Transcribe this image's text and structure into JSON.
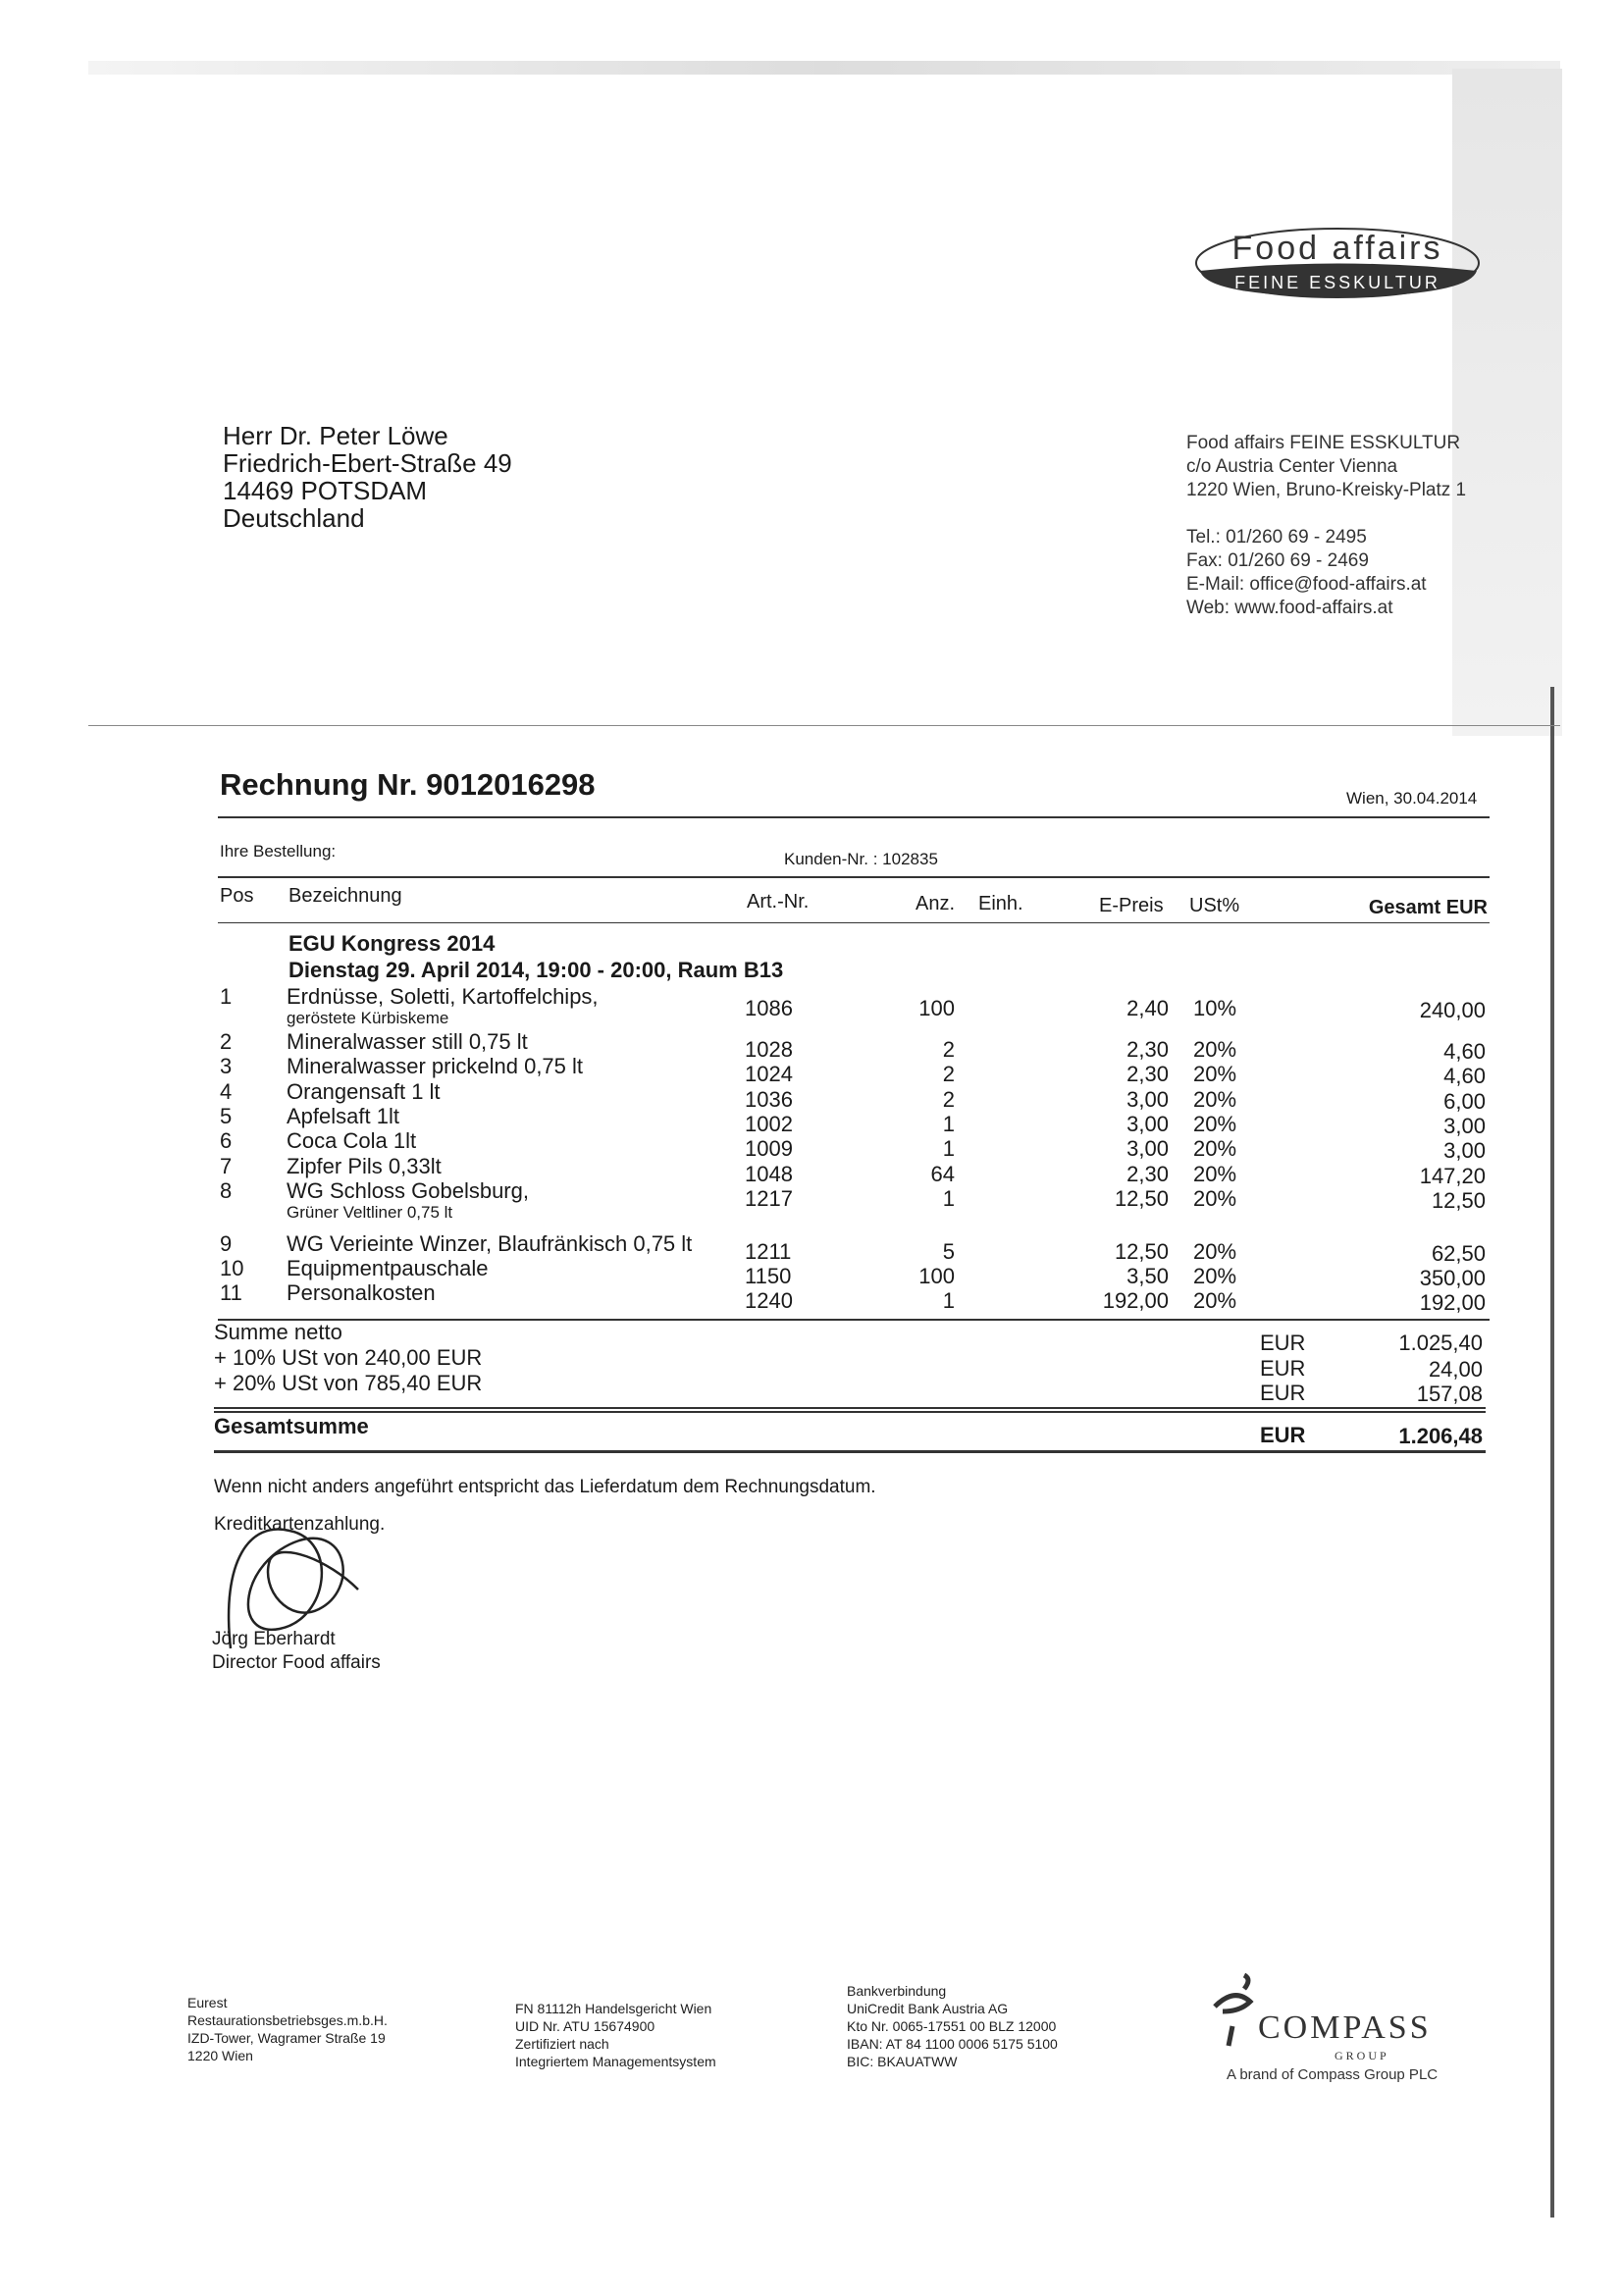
{
  "logo": {
    "name": "Food affairs",
    "tagline": "FEINE ESSKULTUR"
  },
  "recipient": [
    "Herr Dr. Peter Löwe",
    "Friedrich-Ebert-Straße 49",
    "14469 POTSDAM",
    "Deutschland"
  ],
  "sender": [
    "Food affairs FEINE ESSKULTUR",
    "c/o Austria Center Vienna",
    "1220 Wien, Bruno-Kreisky-Platz 1",
    "",
    "Tel.: 01/260 69 - 2495",
    "Fax: 01/260 69 - 2469",
    "E-Mail: office@food-affairs.at",
    "Web: www.food-affairs.at"
  ],
  "invoice": {
    "title": "Rechnung Nr. 9012016298",
    "date": "Wien, 30.04.2014",
    "order_label": "Ihre Bestellung:",
    "customer_no": "Kunden-Nr. : 102835"
  },
  "table": {
    "headers": {
      "pos": "Pos",
      "desc": "Bezeichnung",
      "art": "Art.-Nr.",
      "qty": "Anz.",
      "unit": "Einh.",
      "price": "E-Preis",
      "vat": "USt%",
      "total": "Gesamt EUR"
    },
    "event_title": "EGU Kongress 2014",
    "event_detail": "Dienstag 29. April 2014, 19:00 - 20:00, Raum B13",
    "rows": [
      {
        "pos": "1",
        "desc": "Erdnüsse, Soletti, Kartoffelchips,",
        "sub": "geröstete Kürbiskeme",
        "art": "1086",
        "qty": "100",
        "price": "2,40",
        "vat": "10%",
        "total": "240,00"
      },
      {
        "pos": "2",
        "desc": "Mineralwasser still 0,75 lt",
        "art": "1028",
        "qty": "2",
        "price": "2,30",
        "vat": "20%",
        "total": "4,60"
      },
      {
        "pos": "3",
        "desc": "Mineralwasser prickelnd 0,75 lt",
        "art": "1024",
        "qty": "2",
        "price": "2,30",
        "vat": "20%",
        "total": "4,60"
      },
      {
        "pos": "4",
        "desc": "Orangensaft 1 lt",
        "art": "1036",
        "qty": "2",
        "price": "3,00",
        "vat": "20%",
        "total": "6,00"
      },
      {
        "pos": "5",
        "desc": "Apfelsaft 1lt",
        "art": "1002",
        "qty": "1",
        "price": "3,00",
        "vat": "20%",
        "total": "3,00"
      },
      {
        "pos": "6",
        "desc": "Coca Cola 1lt",
        "art": "1009",
        "qty": "1",
        "price": "3,00",
        "vat": "20%",
        "total": "3,00"
      },
      {
        "pos": "7",
        "desc": "Zipfer Pils 0,33lt",
        "art": "1048",
        "qty": "64",
        "price": "2,30",
        "vat": "20%",
        "total": "147,20"
      },
      {
        "pos": "8",
        "desc": "WG Schloss Gobelsburg,",
        "sub": "Grüner Veltliner 0,75 lt",
        "art": "1217",
        "qty": "1",
        "price": "12,50",
        "vat": "20%",
        "total": "12,50"
      },
      {
        "pos": "9",
        "desc": "WG Verieinte Winzer, Blaufränkisch 0,75 lt",
        "art": "1211",
        "qty": "5",
        "price": "12,50",
        "vat": "20%",
        "total": "62,50"
      },
      {
        "pos": "10",
        "desc": "Equipmentpauschale",
        "art": "1150",
        "qty": "100",
        "price": "3,50",
        "vat": "20%",
        "total": "350,00"
      },
      {
        "pos": "11",
        "desc": "Personalkosten",
        "art": "1240",
        "qty": "1",
        "price": "192,00",
        "vat": "20%",
        "total": "192,00"
      }
    ]
  },
  "totals": {
    "net_label": "Summe netto",
    "net_cur": "EUR",
    "net": "1.025,40",
    "vat10_label": "+ 10% USt  von 240,00 EUR",
    "vat10_cur": "EUR",
    "vat10": "24,00",
    "vat20_label": "+ 20% USt  von 785,40 EUR",
    "vat20_cur": "EUR",
    "vat20": "157,08",
    "gross_label": "Gesamtsumme",
    "gross_cur": "EUR",
    "gross": "1.206,48"
  },
  "note": "Wenn nicht anders angeführt entspricht das Lieferdatum dem Rechnungsdatum.",
  "payment": "Kreditkartenzahlung.",
  "signer": {
    "name": "Jörg Eberhardt",
    "title": "Director Food affairs"
  },
  "footer": {
    "col1": [
      "Eurest",
      "Restaurationsbetriebsges.m.b.H.",
      "IZD-Tower, Wagramer Straße 19",
      "1220 Wien"
    ],
    "col2": [
      "FN 81112h Handelsgericht Wien",
      "UID Nr. ATU 15674900",
      "Zertifiziert nach",
      "Integriertem Managementsystem"
    ],
    "col3": [
      "Bankverbindung",
      "UniCredit Bank Austria AG",
      "Kto Nr. 0065-17551 00 BLZ 12000",
      "IBAN: AT 84 1100 0006 5175 5100",
      "BIC: BKAUATWW"
    ],
    "brand": {
      "name": "COMPASS",
      "group": "G R O U P",
      "tagline": "A brand of Compass Group PLC"
    }
  }
}
